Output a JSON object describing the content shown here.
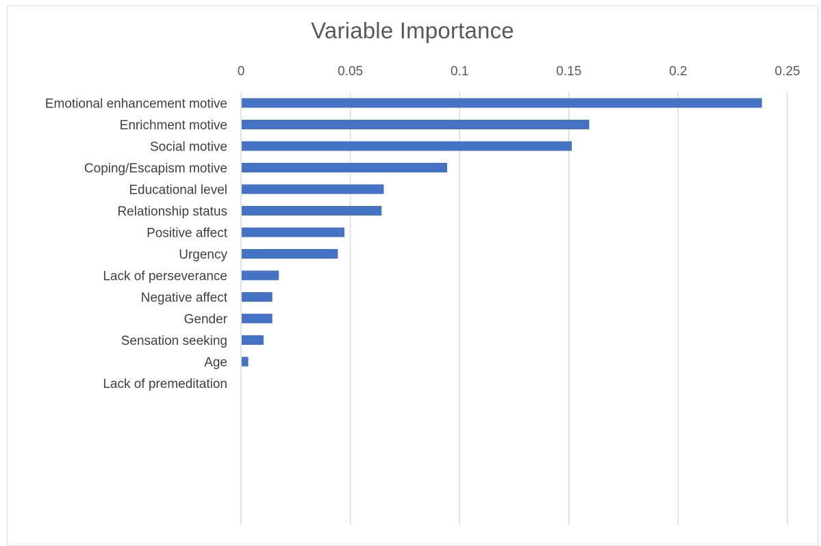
{
  "chart_data": {
    "type": "bar",
    "orientation": "horizontal",
    "title": "Variable Importance",
    "xlabel": "",
    "ylabel": "",
    "xlim": [
      0,
      0.25
    ],
    "x_ticks": [
      0,
      0.05,
      0.1,
      0.15,
      0.2,
      0.25
    ],
    "x_tick_labels": [
      "0",
      "0.05",
      "0.1",
      "0.15",
      "0.2",
      "0.25"
    ],
    "x_axis_position": "top",
    "grid": "vertical",
    "legend": "none",
    "categories": [
      "Emotional enhancement motive",
      "Enrichment motive",
      "Social motive",
      "Coping/Escapism motive",
      "Educational level",
      "Relationship status",
      "Positive affect",
      "Urgency",
      "Lack of perseverance",
      "Negative affect",
      "Gender",
      "Sensation seeking",
      "Age",
      "Lack of premeditation"
    ],
    "values": [
      0.238,
      0.159,
      0.151,
      0.094,
      0.065,
      0.064,
      0.047,
      0.044,
      0.017,
      0.014,
      0.014,
      0.01,
      0.003,
      0.0
    ],
    "bar_color": "#4472c4",
    "grid_color": "#d9d9d9"
  }
}
